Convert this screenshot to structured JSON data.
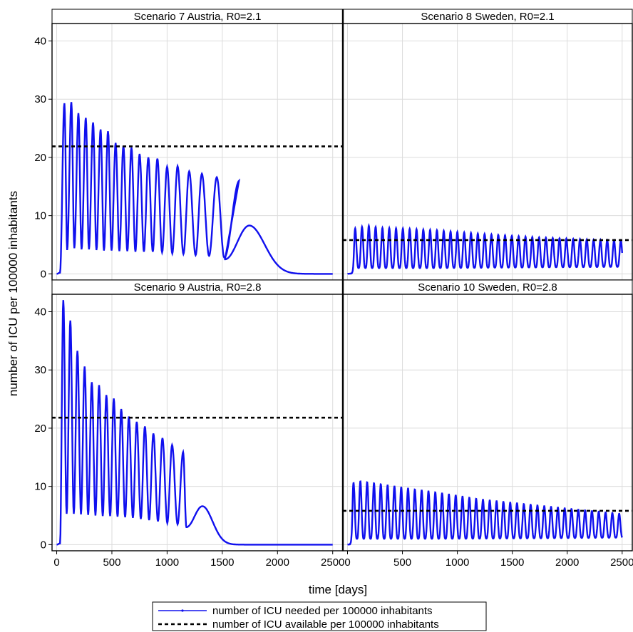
{
  "chart_data": {
    "type": "line",
    "xlabel": "time [days]",
    "ylabel": "number of ICU per 100000 inhabitants",
    "xlim": [
      0,
      2500
    ],
    "ylim": [
      0,
      43
    ],
    "x_ticks": [
      0,
      500,
      1000,
      1500,
      2000,
      2500
    ],
    "x_tick_labels": [
      "0",
      "500",
      "1000",
      "1500",
      "2000",
      "2500"
    ],
    "y_ticks": [
      0,
      10,
      20,
      30,
      40
    ],
    "y_tick_labels": [
      "0",
      "10",
      "20",
      "30",
      "40"
    ],
    "grid": true,
    "legend_placement": "bottom-center",
    "colors": {
      "needed": "#1010ee",
      "available": "#000000",
      "grid": "#dcdcdc"
    },
    "series": [
      {
        "name": "number of ICU needed per 100000 inhabitants",
        "style": "solid line with dot markers"
      },
      {
        "name": "number of ICU available per 100000 inhabitants",
        "style": "dashed line"
      }
    ],
    "panels": [
      {
        "title": "Scenario 7 Austria, R0=2.1",
        "available": 21.9,
        "needed_peaks": [
          [
            70,
            29.3
          ],
          [
            133,
            29.5
          ],
          [
            197,
            27.6
          ],
          [
            264,
            26.8
          ],
          [
            330,
            26.0
          ],
          [
            398,
            24.8
          ],
          [
            465,
            24.5
          ],
          [
            534,
            22.5
          ],
          [
            604,
            22.0
          ],
          [
            677,
            21.7
          ],
          [
            751,
            20.6
          ],
          [
            830,
            20.0
          ],
          [
            912,
            19.8
          ],
          [
            1000,
            18.4
          ],
          [
            1095,
            18.5
          ],
          [
            1200,
            17.6
          ],
          [
            1315,
            17.2
          ],
          [
            1450,
            16.6
          ],
          [
            1655,
            16.0
          ]
        ],
        "needed_troughs": [
          [
            95,
            4.1
          ],
          [
            160,
            4.4
          ],
          [
            225,
            4.2
          ],
          [
            292,
            4.2
          ],
          [
            360,
            4.1
          ],
          [
            428,
            4.0
          ],
          [
            497,
            4.0
          ],
          [
            568,
            3.9
          ],
          [
            640,
            3.9
          ],
          [
            713,
            3.8
          ],
          [
            790,
            3.8
          ],
          [
            870,
            3.8
          ],
          [
            955,
            3.7
          ],
          [
            1047,
            3.5
          ],
          [
            1148,
            3.4
          ],
          [
            1258,
            3.2
          ],
          [
            1380,
            3.1
          ],
          [
            1518,
            2.8
          ]
        ],
        "needed_tail": [
          [
            1525,
            2.5
          ],
          [
            1745,
            8.3
          ],
          [
            2200,
            0.1
          ],
          [
            2500,
            0.0
          ]
        ]
      },
      {
        "title": "Scenario 8 Sweden, R0=2.1",
        "available": 5.8,
        "needed_peaks": [
          [
            70,
            7.8
          ],
          [
            180,
            8.3
          ],
          [
            300,
            7.9
          ],
          [
            500,
            7.8
          ],
          [
            800,
            7.5
          ],
          [
            1200,
            6.9
          ],
          [
            1700,
            6.3
          ],
          [
            2200,
            5.9
          ],
          [
            2480,
            5.7
          ]
        ],
        "needed_troughs": [
          [
            100,
            1.0
          ],
          [
            800,
            1.0
          ],
          [
            1600,
            1.1
          ],
          [
            2480,
            1.2
          ]
        ],
        "needed_period_days": 62
      },
      {
        "title": "Scenario 9 Austria, R0=2.8",
        "available": 21.8,
        "needed_peaks": [
          [
            60,
            42.0
          ],
          [
            124,
            38.5
          ],
          [
            188,
            33.3
          ],
          [
            253,
            30.6
          ],
          [
            318,
            27.9
          ],
          [
            384,
            27.4
          ],
          [
            450,
            25.7
          ],
          [
            517,
            25.1
          ],
          [
            585,
            23.3
          ],
          [
            654,
            22.0
          ],
          [
            725,
            21.1
          ],
          [
            799,
            20.3
          ],
          [
            876,
            19.1
          ],
          [
            958,
            18.3
          ],
          [
            1045,
            17.1
          ],
          [
            1145,
            15.9
          ]
        ],
        "needed_troughs": [
          [
            90,
            5.3
          ],
          [
            155,
            5.3
          ],
          [
            220,
            5.2
          ],
          [
            285,
            5.1
          ],
          [
            351,
            5.0
          ],
          [
            417,
            4.9
          ],
          [
            484,
            4.9
          ],
          [
            551,
            4.8
          ],
          [
            620,
            4.7
          ],
          [
            690,
            4.6
          ],
          [
            762,
            4.4
          ],
          [
            837,
            4.2
          ],
          [
            917,
            4.0
          ],
          [
            1002,
            3.7
          ],
          [
            1095,
            3.5
          ]
        ],
        "needed_tail": [
          [
            1175,
            3.0
          ],
          [
            1320,
            6.6
          ],
          [
            1650,
            0.3
          ],
          [
            2500,
            0.0
          ]
        ]
      },
      {
        "title": "Scenario 10 Sweden, R0=2.8",
        "available": 5.8,
        "needed_peaks": [
          [
            55,
            10.6
          ],
          [
            120,
            10.9
          ],
          [
            300,
            10.4
          ],
          [
            500,
            9.8
          ],
          [
            800,
            9.0
          ],
          [
            1200,
            7.8
          ],
          [
            1600,
            7.0
          ],
          [
            2000,
            6.2
          ],
          [
            2480,
            5.3
          ]
        ],
        "needed_troughs": [
          [
            85,
            1.0
          ],
          [
            900,
            1.0
          ],
          [
            1800,
            1.1
          ],
          [
            2480,
            1.2
          ]
        ],
        "needed_period_days": 62
      }
    ]
  }
}
